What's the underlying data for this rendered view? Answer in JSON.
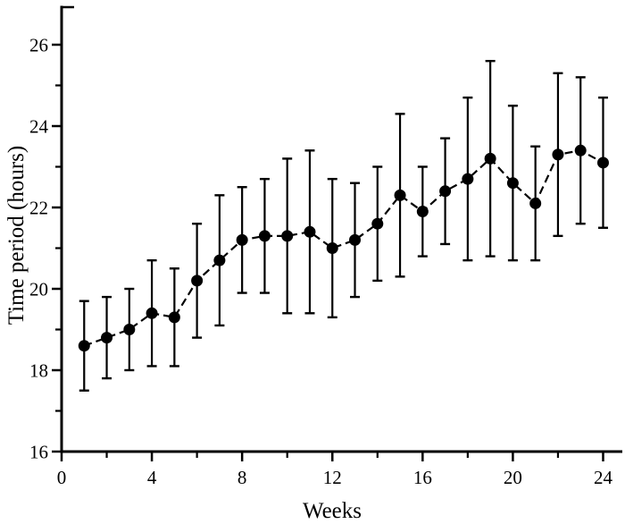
{
  "page": {
    "background": "#ffffff",
    "ink_color": "#000000"
  },
  "chart_data": {
    "type": "line",
    "title": "",
    "xlabel": "Weeks",
    "ylabel": "Time period (hours)",
    "x": [
      1,
      2,
      3,
      4,
      5,
      6,
      7,
      8,
      9,
      10,
      11,
      12,
      13,
      14,
      15,
      16,
      17,
      18,
      19,
      20,
      21,
      22,
      23,
      24
    ],
    "series": [
      {
        "name": "time-period-hours",
        "values": [
          18.6,
          18.8,
          19.0,
          19.4,
          19.3,
          20.2,
          20.7,
          21.2,
          21.3,
          21.3,
          21.4,
          21.0,
          21.2,
          21.6,
          22.3,
          21.9,
          22.4,
          22.7,
          23.2,
          22.6,
          22.1,
          23.3,
          23.4,
          23.1
        ],
        "error_low": [
          17.5,
          17.8,
          18.0,
          18.1,
          18.1,
          18.8,
          19.1,
          19.9,
          19.9,
          19.4,
          19.4,
          19.3,
          19.8,
          20.2,
          20.3,
          20.8,
          21.1,
          20.7,
          20.8,
          20.7,
          20.7,
          21.3,
          21.6,
          21.5
        ],
        "error_high": [
          19.7,
          19.8,
          20.0,
          20.7,
          20.5,
          21.6,
          22.3,
          22.5,
          22.7,
          23.2,
          23.4,
          22.7,
          22.6,
          23.0,
          24.3,
          23.0,
          23.7,
          24.7,
          25.6,
          24.5,
          23.5,
          25.3,
          25.2,
          24.7
        ],
        "marker": "filled-circle",
        "line_style": "dashed",
        "color": "#000000"
      }
    ],
    "xlim": [
      0,
      24.85
    ],
    "ylim": [
      16,
      26.95
    ],
    "x_major_ticks": [
      0,
      4,
      8,
      12,
      16,
      20,
      24
    ],
    "x_minor_ticks": [
      2,
      6,
      10,
      14,
      18,
      22
    ],
    "y_major_ticks": [
      16,
      18,
      20,
      22,
      24,
      26
    ],
    "y_minor_ticks": [
      17,
      19,
      21,
      23,
      25
    ],
    "grid": false,
    "legend_position": "none",
    "axis_color": "#000000",
    "background": "#ffffff"
  }
}
